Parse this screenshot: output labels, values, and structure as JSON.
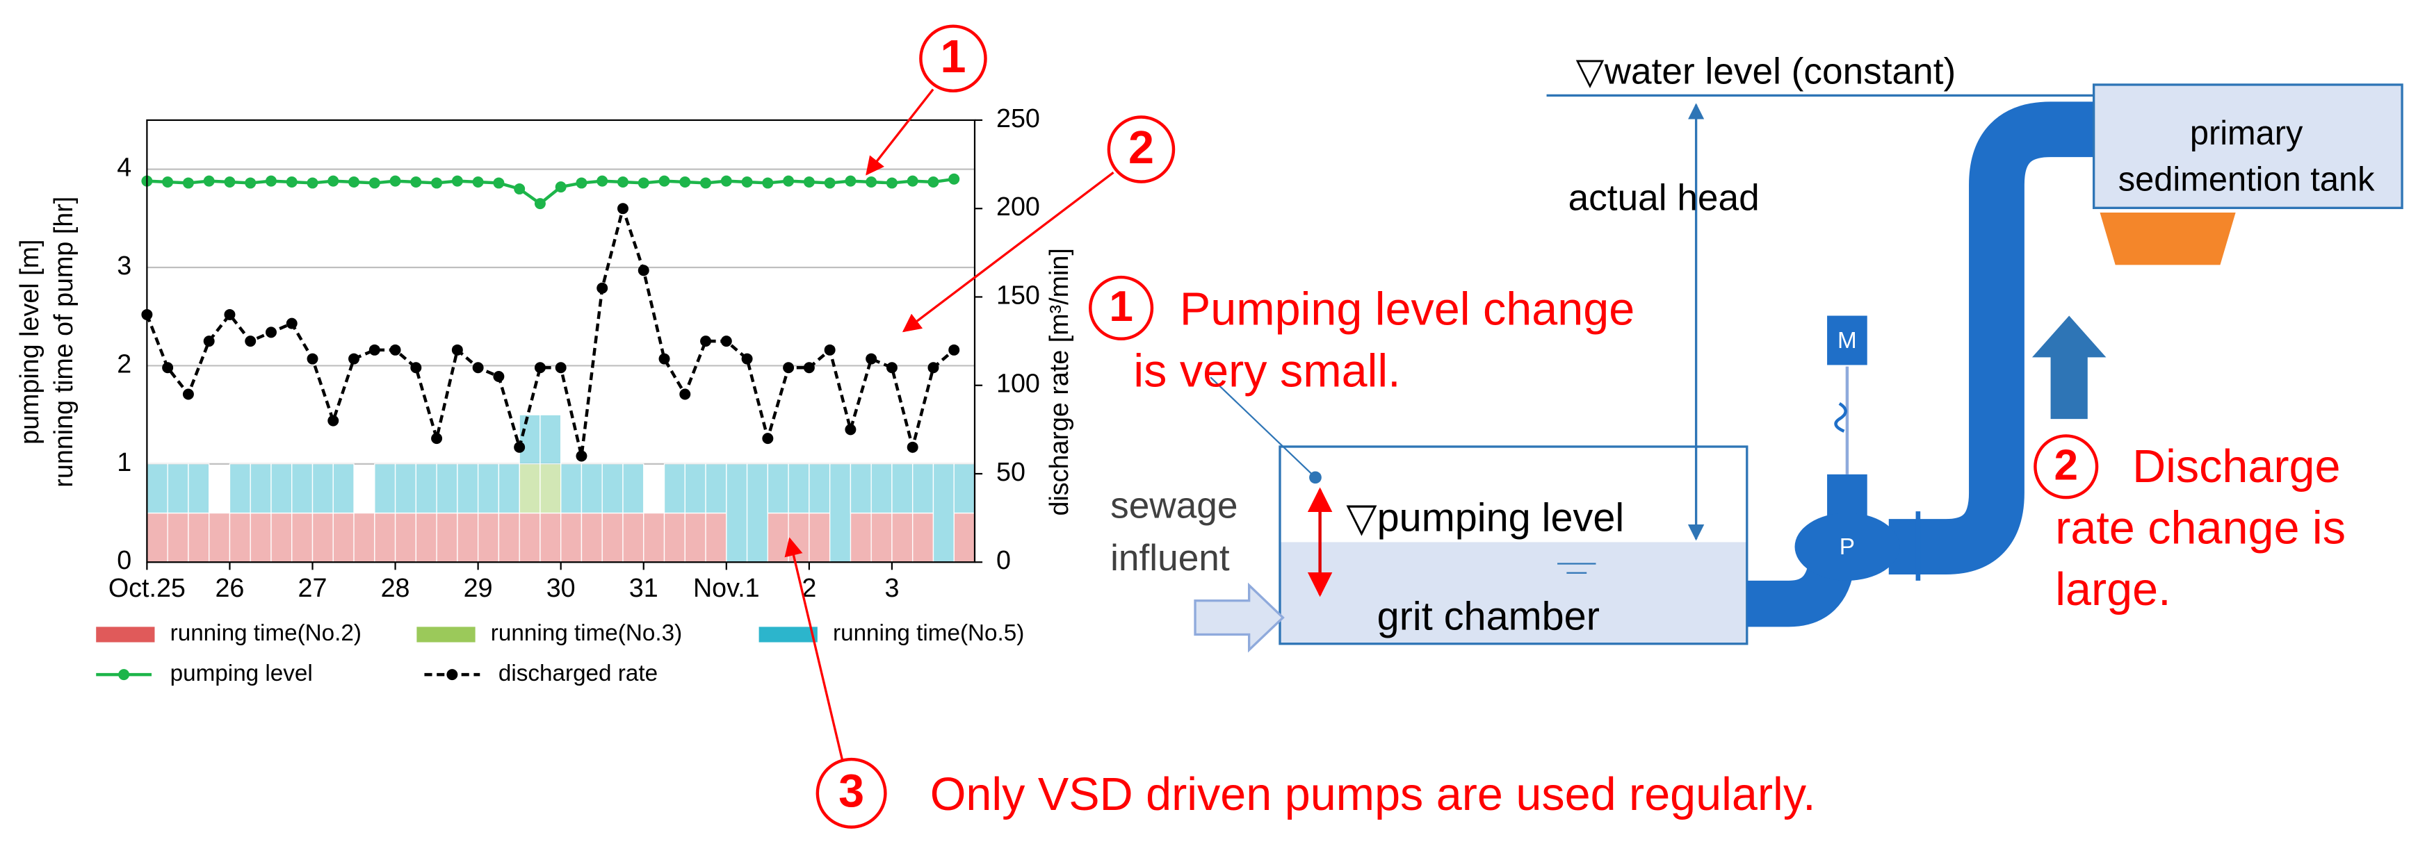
{
  "chart_data": {
    "type": "combo",
    "y_label": [
      "pumping level [m]",
      "running time of pump [hr]"
    ],
    "y2_label": "discharge rate [m³/min]",
    "x": [
      0,
      0.25,
      0.5,
      0.75,
      1,
      1.25,
      1.5,
      1.75,
      2,
      2.25,
      2.5,
      2.75,
      3,
      3.25,
      3.5,
      3.75,
      4,
      4.25,
      4.5,
      4.75,
      5,
      5.25,
      5.5,
      5.75,
      6,
      6.25,
      6.5,
      6.75,
      7,
      7.25,
      7.5,
      7.75,
      8,
      8.25,
      8.5,
      8.75,
      9,
      9.25,
      9.5,
      9.75
    ],
    "xlim": [
      0,
      10
    ],
    "xticks": [
      {
        "value": 0,
        "label": "Oct.25"
      },
      {
        "value": 1,
        "label": "26"
      },
      {
        "value": 2,
        "label": "27"
      },
      {
        "value": 3,
        "label": "28"
      },
      {
        "value": 4,
        "label": "29"
      },
      {
        "value": 5,
        "label": "30"
      },
      {
        "value": 6,
        "label": "31"
      },
      {
        "value": 7,
        "label": "Nov.1"
      },
      {
        "value": 8,
        "label": "2"
      },
      {
        "value": 9,
        "label": "3"
      }
    ],
    "ylim": [
      0,
      4.5
    ],
    "yticks": [
      0,
      1,
      2,
      3,
      4
    ],
    "y2lim": [
      0,
      250
    ],
    "y2ticks": [
      0,
      50,
      100,
      150,
      200,
      250
    ],
    "grid": true,
    "legend": "bottom",
    "series": [
      {
        "name": "running time(No.2)",
        "type": "bar",
        "color": "#e05a5a",
        "values": [
          0.5,
          0.5,
          0.5,
          0.5,
          0.5,
          0.5,
          0.5,
          0.5,
          0.5,
          0.5,
          0.5,
          0.5,
          0.5,
          0.5,
          0.5,
          0.5,
          0.5,
          0.5,
          0.5,
          0.5,
          0.5,
          0.5,
          0.5,
          0.5,
          0.5,
          0.5,
          0.5,
          0.5,
          0,
          0,
          0.5,
          0.5,
          0.5,
          0,
          0.5,
          0.5,
          0.5,
          0.5,
          0,
          0.5
        ]
      },
      {
        "name": "running time(No.3)",
        "type": "bar",
        "color": "#9bc95a",
        "values": [
          0,
          0,
          0,
          0,
          0,
          0,
          0,
          0,
          0,
          0,
          0,
          0,
          0,
          0,
          0,
          0,
          0,
          0,
          0.5,
          0.5,
          0,
          0,
          0,
          0,
          0,
          0,
          0,
          0,
          0,
          0,
          0,
          0,
          0,
          0,
          0,
          0,
          0,
          0,
          0,
          0
        ]
      },
      {
        "name": "running time(No.5)",
        "type": "bar",
        "color": "#2cb5cc",
        "values": [
          0.5,
          0.5,
          0.5,
          0,
          0.5,
          0.5,
          0.5,
          0.5,
          0.5,
          0.5,
          0,
          0.5,
          0.5,
          0.5,
          0.5,
          0.5,
          0.5,
          0.5,
          0.5,
          0.5,
          0.5,
          0.5,
          0.5,
          0.5,
          0,
          0.5,
          0.5,
          0.5,
          1,
          1,
          0.5,
          0.5,
          0.5,
          1,
          0.5,
          0.5,
          0.5,
          0.5,
          1,
          0.5
        ]
      },
      {
        "name": "pumping level",
        "type": "line",
        "color": "#1db54a",
        "values": [
          3.88,
          3.87,
          3.86,
          3.88,
          3.87,
          3.86,
          3.88,
          3.87,
          3.86,
          3.88,
          3.87,
          3.86,
          3.88,
          3.87,
          3.86,
          3.88,
          3.87,
          3.86,
          3.8,
          3.65,
          3.82,
          3.86,
          3.88,
          3.87,
          3.86,
          3.88,
          3.87,
          3.86,
          3.88,
          3.87,
          3.86,
          3.88,
          3.87,
          3.86,
          3.88,
          3.87,
          3.86,
          3.88,
          3.87,
          3.9
        ]
      },
      {
        "name": "discharged rate",
        "type": "line",
        "axis": "y2",
        "dashed": true,
        "color": "#000000",
        "values": [
          140,
          110,
          95,
          125,
          140,
          125,
          130,
          135,
          115,
          80,
          115,
          120,
          120,
          110,
          70,
          120,
          110,
          105,
          65,
          110,
          110,
          60,
          155,
          200,
          165,
          115,
          95,
          125,
          125,
          115,
          70,
          110,
          110,
          120,
          75,
          115,
          110,
          65,
          110,
          120
        ]
      }
    ]
  },
  "callouts": [
    {
      "number": "1",
      "lines": [
        "Pumping level change",
        "is very small."
      ]
    },
    {
      "number": "2",
      "lines": [
        "Discharge",
        "rate change is",
        "large."
      ]
    },
    {
      "number": "3",
      "lines": [
        "Only VSD driven pumps are used regularly."
      ]
    }
  ],
  "diagram": {
    "water_level": "▽water level (constant)",
    "actual_head": "actual head",
    "tank": [
      "primary",
      "sedimention tank"
    ],
    "influent": [
      "sewage",
      "influent"
    ],
    "pumping_level": "▽pumping level",
    "chamber": "grit chamber",
    "motor": "M",
    "pump": "P"
  }
}
